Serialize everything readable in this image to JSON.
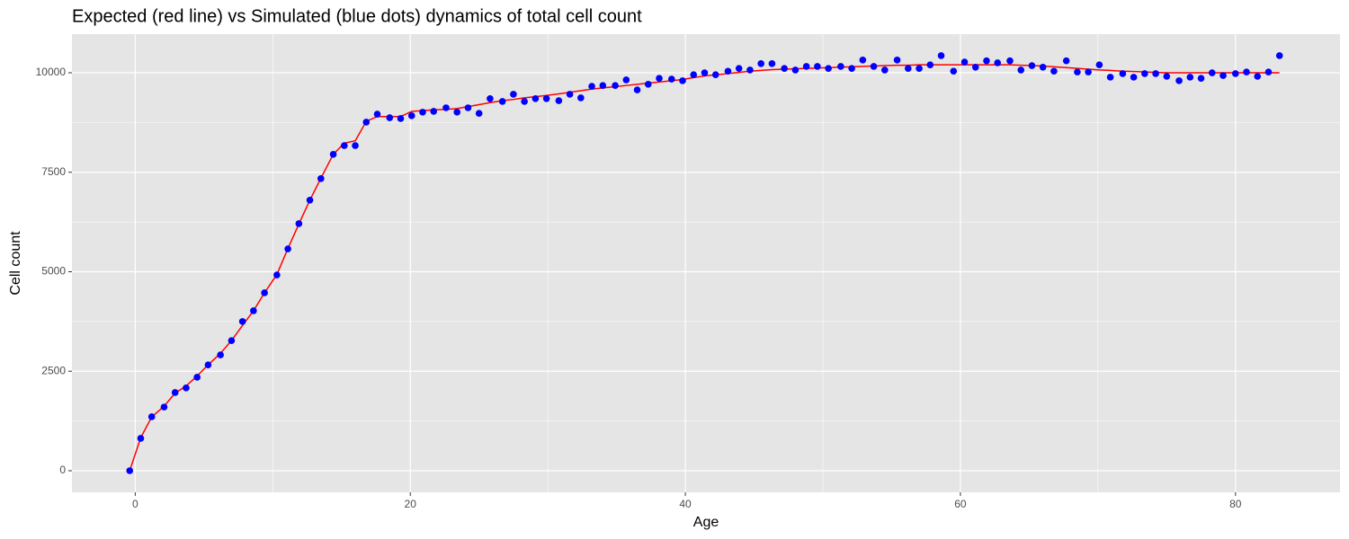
{
  "chart_data": {
    "type": "scatter",
    "title": "Expected (red line) vs Simulated (blue dots) dynamics of total cell count",
    "x_label": "Age",
    "y_label": "Cell count",
    "x": [
      -0.4,
      0.4,
      1.2,
      2.1,
      2.9,
      3.7,
      4.5,
      5.3,
      6.2,
      7.0,
      7.8,
      8.6,
      9.4,
      10.3,
      11.1,
      11.9,
      12.7,
      13.5,
      14.4,
      15.2,
      16.0,
      16.8,
      17.6,
      18.5,
      19.3,
      20.1,
      20.9,
      21.7,
      22.6,
      23.4,
      24.2,
      25.0,
      25.8,
      26.7,
      27.5,
      28.3,
      29.1,
      29.9,
      30.8,
      31.6,
      32.4,
      33.2,
      34.0,
      34.9,
      35.7,
      36.5,
      37.3,
      38.1,
      39.0,
      39.8,
      40.6,
      41.4,
      42.2,
      43.1,
      43.9,
      44.7,
      45.5,
      46.3,
      47.2,
      48.0,
      48.8,
      49.6,
      50.4,
      51.3,
      52.1,
      52.9,
      53.7,
      54.5,
      55.4,
      56.2,
      57.0,
      57.8,
      58.6,
      59.5,
      60.3,
      61.1,
      61.9,
      62.7,
      63.6,
      64.4,
      65.2,
      66.0,
      66.8,
      67.7,
      68.5,
      69.3,
      70.1,
      70.9,
      71.8,
      72.6,
      73.4,
      74.2,
      75.0,
      75.9,
      76.7,
      77.5,
      78.3,
      79.1,
      80.0,
      80.8,
      81.6,
      82.4,
      83.2
    ],
    "series": [
      {
        "type": "line",
        "color": "#ff0000",
        "values": [
          0,
          830,
          1350,
          1620,
          1950,
          2130,
          2380,
          2660,
          2950,
          3270,
          3650,
          4020,
          4470,
          4930,
          5580,
          6200,
          6800,
          7350,
          7950,
          8230,
          8290,
          8780,
          8900,
          8900,
          8900,
          9030,
          9050,
          9070,
          9080,
          9100,
          9150,
          9200,
          9250,
          9300,
          9330,
          9370,
          9400,
          9430,
          9470,
          9510,
          9550,
          9590,
          9620,
          9650,
          9680,
          9710,
          9740,
          9770,
          9800,
          9830,
          9880,
          9920,
          9950,
          9980,
          10010,
          10040,
          10060,
          10080,
          10090,
          10100,
          10110,
          10120,
          10130,
          10140,
          10150,
          10160,
          10170,
          10180,
          10190,
          10190,
          10200,
          10200,
          10200,
          10200,
          10200,
          10200,
          10200,
          10200,
          10200,
          10190,
          10180,
          10170,
          10150,
          10130,
          10110,
          10090,
          10070,
          10060,
          10040,
          10030,
          10020,
          10010,
          10000,
          10000,
          10000,
          10000,
          10000,
          10000,
          10000,
          10000,
          10000,
          10000,
          10000
        ]
      },
      {
        "type": "scatter",
        "color": "#0000ff",
        "values": [
          0,
          813,
          1355,
          1600,
          1965,
          2080,
          2350,
          2660,
          2910,
          3270,
          3750,
          4020,
          4470,
          4920,
          5575,
          6210,
          6800,
          7340,
          7950,
          8170,
          8170,
          8760,
          8960,
          8870,
          8850,
          8920,
          9010,
          9030,
          9120,
          9010,
          9120,
          8980,
          9350,
          9280,
          9460,
          9280,
          9350,
          9350,
          9300,
          9460,
          9370,
          9660,
          9680,
          9680,
          9820,
          9570,
          9710,
          9860,
          9840,
          9800,
          9950,
          10000,
          9950,
          10040,
          10110,
          10070,
          10230,
          10230,
          10110,
          10070,
          10160,
          10160,
          10110,
          10160,
          10110,
          10320,
          10160,
          10070,
          10320,
          10110,
          10110,
          10200,
          10430,
          10040,
          10270,
          10140,
          10300,
          10250,
          10300,
          10070,
          10180,
          10140,
          10040,
          10300,
          10020,
          10020,
          10200,
          9890,
          9980,
          9890,
          9980,
          9980,
          9910,
          9800,
          9890,
          9860,
          10000,
          9930,
          9980,
          10020,
          9910,
          10020,
          10430
        ]
      }
    ],
    "xlim": [
      -4.6,
      87.6
    ],
    "ylim": [
      -542,
      10971
    ],
    "xticks": [
      0,
      20,
      40,
      60,
      80
    ],
    "yticks": [
      0,
      2500,
      5000,
      7500,
      10000
    ],
    "grid": true,
    "panel_color": "#e5e5e5"
  }
}
